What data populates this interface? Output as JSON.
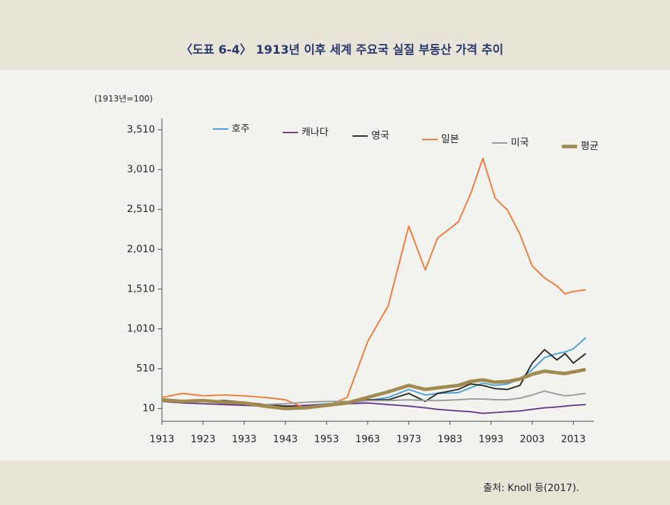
{
  "chart_data": {
    "type": "line",
    "title": "〈도표 6-4〉 1913년 이후 세계 주요국 실질 부동산 가격 추이",
    "y_label": "(1913년=100)",
    "source": "출처: Knoll 등(2017).",
    "x": [
      1913,
      1918,
      1923,
      1928,
      1933,
      1938,
      1943,
      1948,
      1953,
      1958,
      1963,
      1968,
      1973,
      1977,
      1980,
      1985,
      1988,
      1991,
      1994,
      1997,
      2000,
      2003,
      2006,
      2009,
      2011,
      2013,
      2016
    ],
    "series": [
      {
        "name": "호주",
        "color": "#4a9fd4",
        "values": [
          120,
          90,
          100,
          80,
          60,
          40,
          30,
          50,
          70,
          80,
          110,
          150,
          250,
          180,
          200,
          210,
          270,
          330,
          300,
          320,
          380,
          500,
          650,
          700,
          720,
          760,
          900
        ]
      },
      {
        "name": "캐나다",
        "color": "#6a3a8a",
        "values": [
          100,
          80,
          70,
          60,
          50,
          40,
          40,
          50,
          60,
          70,
          80,
          60,
          40,
          20,
          0,
          -20,
          -30,
          -50,
          -40,
          -30,
          -20,
          0,
          20,
          30,
          40,
          50,
          60
        ]
      },
      {
        "name": "영국",
        "color": "#2a2a2a",
        "values": [
          110,
          90,
          100,
          110,
          90,
          60,
          40,
          30,
          60,
          90,
          120,
          120,
          200,
          100,
          200,
          250,
          320,
          300,
          260,
          250,
          300,
          580,
          750,
          620,
          700,
          580,
          700
        ]
      },
      {
        "name": "일본",
        "color": "#f07a3a",
        "values": [
          150,
          200,
          170,
          180,
          170,
          150,
          120,
          10,
          40,
          150,
          850,
          1300,
          2300,
          1750,
          2150,
          2350,
          2700,
          3150,
          2650,
          2500,
          2200,
          1800,
          1650,
          1550,
          1450,
          1480,
          1500
        ]
      },
      {
        "name": "미국",
        "color": "#999999",
        "values": [
          100,
          100,
          110,
          90,
          70,
          60,
          70,
          90,
          100,
          100,
          110,
          110,
          120,
          110,
          110,
          120,
          130,
          130,
          120,
          120,
          140,
          180,
          230,
          190,
          170,
          180,
          200
        ]
      },
      {
        "name": "평균",
        "color": "#a08a50",
        "values": [
          120,
          100,
          110,
          90,
          80,
          40,
          10,
          20,
          50,
          80,
          150,
          220,
          300,
          250,
          270,
          300,
          350,
          370,
          340,
          350,
          380,
          440,
          480,
          460,
          450,
          470,
          500
        ]
      }
    ],
    "xlim": [
      1913,
      2018
    ],
    "xticks": [
      1913,
      1923,
      1933,
      1943,
      1953,
      1963,
      1973,
      1983,
      1993,
      2003,
      2013
    ],
    "ylim": [
      -150,
      3650
    ],
    "yticks": [
      10,
      510,
      {
        "value": 1010,
        "label": "1,010"
      },
      {
        "value": 1510,
        "label": "1,510"
      },
      {
        "value": 2010,
        "label": "2,010"
      },
      {
        "value": 2510,
        "label": "2,510"
      },
      {
        "value": 3010,
        "label": "3,010"
      },
      {
        "value": 3510,
        "label": "3,510"
      }
    ]
  }
}
